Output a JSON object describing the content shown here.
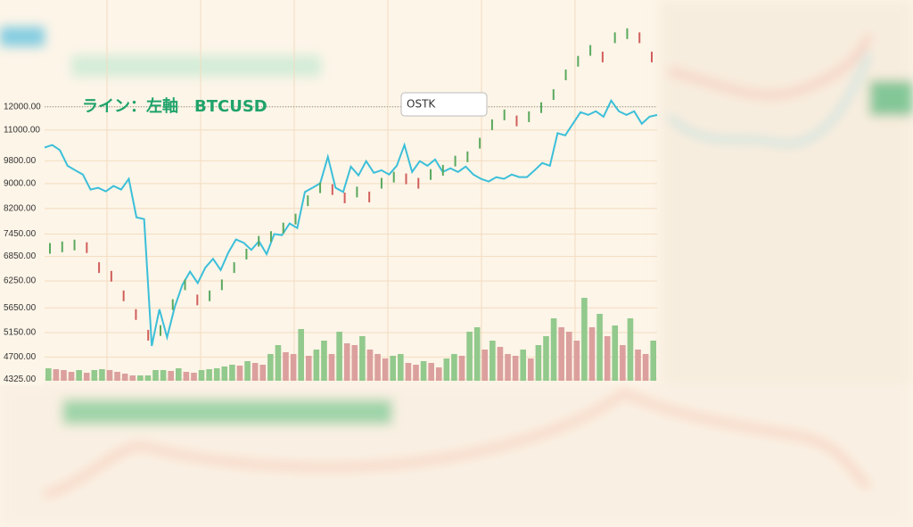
{
  "chart_data": {
    "type": "line",
    "title": "ライン：左軸　BTCUSD",
    "annotation": "OSTK",
    "log_scale": true,
    "grid": true,
    "ylim": [
      4300,
      17900
    ],
    "yticks": [
      {
        "value": 12000,
        "label": "12000.00"
      },
      {
        "value": 11000,
        "label": "11000.00"
      },
      {
        "value": 9800,
        "label": "9800.00"
      },
      {
        "value": 9000,
        "label": "9000.00"
      },
      {
        "value": 8200,
        "label": "8200.00"
      },
      {
        "value": 7450,
        "label": "7450.00"
      },
      {
        "value": 6850,
        "label": "6850.00"
      },
      {
        "value": 6250,
        "label": "6250.00"
      },
      {
        "value": 5650,
        "label": "5650.00"
      },
      {
        "value": 5150,
        "label": "5150.00"
      },
      {
        "value": 4700,
        "label": "4700.00"
      },
      {
        "value": 4325,
        "label": "4325.00"
      }
    ],
    "reference_line": 12000,
    "series": [
      {
        "color": "#3bbfd9",
        "values": [
          10300,
          10400,
          10200,
          9620,
          9460,
          9310,
          8800,
          8860,
          8740,
          8920,
          8800,
          9160,
          7930,
          7880,
          4900,
          5620,
          5060,
          5670,
          6160,
          6470,
          6200,
          6570,
          6790,
          6510,
          6950,
          7300,
          7210,
          7020,
          7250,
          6910,
          7450,
          7420,
          7750,
          7620,
          8720,
          8860,
          9010,
          9950,
          8860,
          8720,
          9590,
          9280,
          9790,
          9370,
          9460,
          9310,
          9620,
          10400,
          9400,
          9790,
          9620,
          9850,
          9400,
          9530,
          9400,
          9590,
          9310,
          9160,
          9070,
          9220,
          9160,
          9310,
          9220,
          9220,
          9460,
          9720,
          9620,
          10870,
          10780,
          11260,
          11760,
          11640,
          11800,
          11560,
          12280,
          11800,
          11640,
          11800,
          11260,
          11560,
          11640
        ]
      },
      {
        "color": "#5aa95e",
        "down_color": "#d15f5c",
        "values": [
          7060,
          7100,
          7150,
          7080,
          6570,
          6360,
          5910,
          5510,
          5100,
          5190,
          5720,
          6160,
          5820,
          5910,
          6160,
          6570,
          6910,
          7250,
          7380,
          7620,
          7880,
          8440,
          8860,
          8800,
          8530,
          8720,
          8560,
          9010,
          9220,
          9160,
          9010,
          9310,
          9460,
          9790,
          9950,
          10470,
          11220,
          11640,
          11380,
          11560,
          11960,
          12560,
          13520,
          14230,
          14820,
          14460,
          15540,
          15780,
          15540,
          14460
        ]
      }
    ],
    "volume": {
      "ylim": [
        0,
        100
      ],
      "color": "#92c98c",
      "down_color": "#dba09d",
      "values": [
        14,
        13,
        12,
        10,
        12,
        9,
        12,
        13,
        12,
        10,
        8,
        6,
        6,
        6,
        12,
        12,
        11,
        14,
        10,
        9,
        12,
        13,
        14,
        16,
        18,
        17,
        22,
        20,
        18,
        30,
        40,
        32,
        30,
        58,
        28,
        35,
        45,
        30,
        55,
        42,
        40,
        50,
        35,
        30,
        25,
        28,
        30,
        20,
        18,
        22,
        20,
        15,
        25,
        30,
        28,
        55,
        60,
        35,
        45,
        38,
        30,
        28,
        35,
        25,
        40,
        50,
        70,
        60,
        55,
        45,
        93,
        60,
        75,
        50,
        62,
        40,
        70,
        35,
        30,
        45
      ]
    }
  }
}
